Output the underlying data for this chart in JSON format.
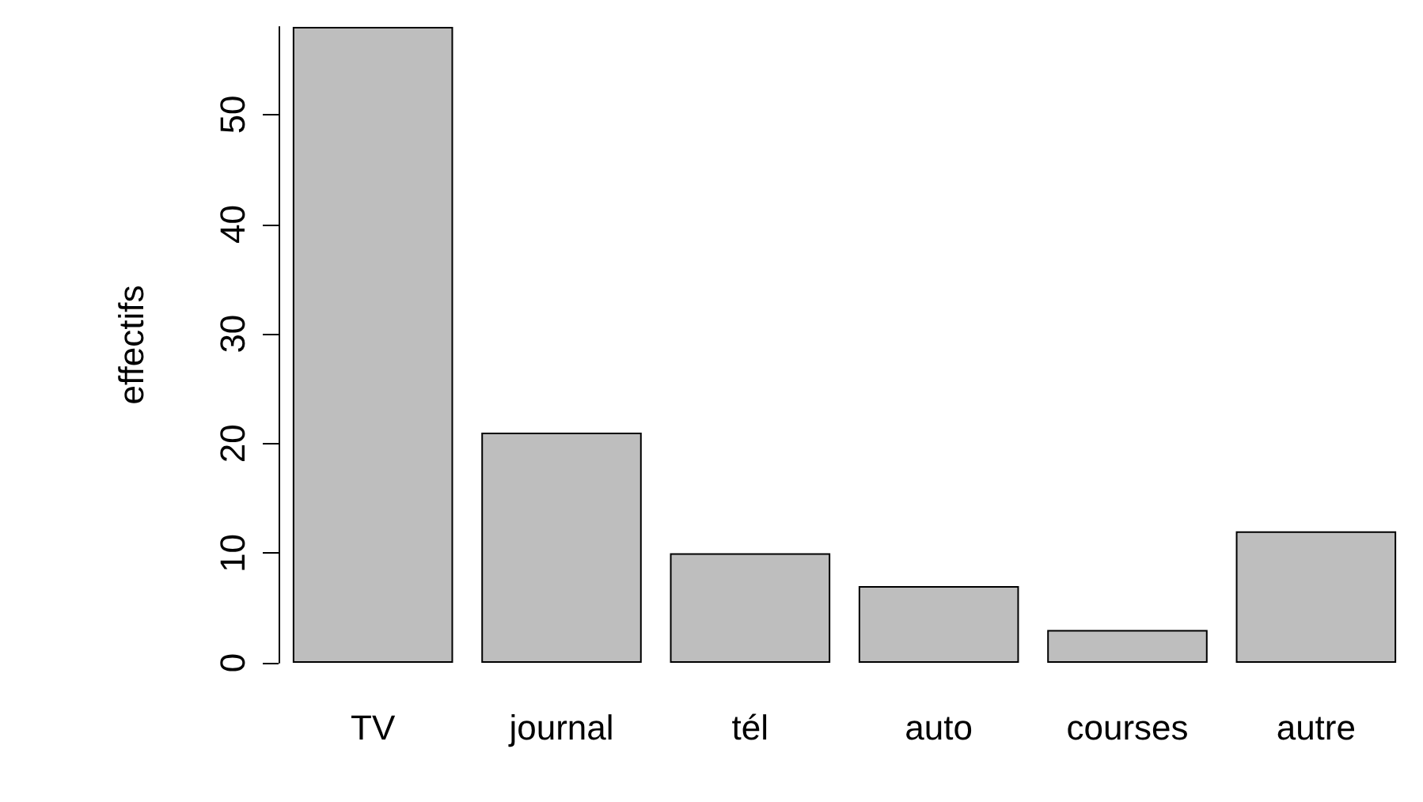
{
  "chart_data": {
    "type": "bar",
    "ylabel": "effectifs",
    "categories": [
      "TV",
      "journal",
      "tél",
      "auto",
      "courses",
      "autre"
    ],
    "values": [
      58,
      21,
      10,
      7,
      3,
      12
    ],
    "color": "#bebebe",
    "ylim": [
      0,
      58
    ],
    "yticks": [
      0,
      10,
      20,
      30,
      40,
      50
    ],
    "grid": false
  }
}
